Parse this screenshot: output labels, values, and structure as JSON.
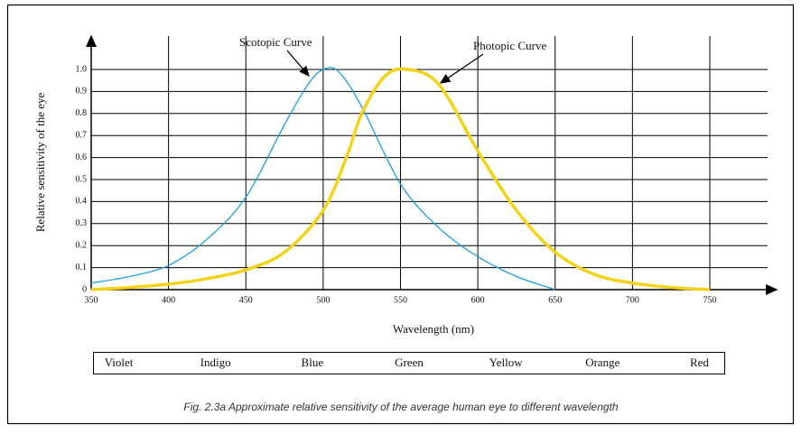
{
  "chart_data": {
    "type": "line",
    "xlabel": "Wavelength (nm)",
    "ylabel": "Relative sensitivity of the eye",
    "xlim": [
      350,
      750
    ],
    "xticks": [
      350,
      400,
      450,
      500,
      550,
      600,
      650,
      700,
      750
    ],
    "ylim": [
      0,
      1
    ],
    "yticks": [
      0,
      0.1,
      0.2,
      0.3,
      0.4,
      0.5,
      0.6,
      0.7,
      0.8,
      0.9,
      {
        "value": 1,
        "label": "1.0"
      }
    ],
    "grid": true,
    "series": [
      {
        "name": "Scotopic Curve",
        "color": "#1ea0dc",
        "width": 1.3,
        "x": [
          350,
          375,
          400,
          425,
          450,
          475,
          490,
          500,
          510,
          525,
          550,
          575,
          600,
          625,
          650
        ],
        "values": [
          0.03,
          0.06,
          0.11,
          0.23,
          0.42,
          0.75,
          0.93,
          1.0,
          0.99,
          0.83,
          0.48,
          0.28,
          0.15,
          0.06,
          0.0
        ]
      },
      {
        "name": "Photopic Curve",
        "color": "#f2d21a",
        "width": 3.5,
        "x": [
          350,
          375,
          400,
          425,
          450,
          475,
          500,
          515,
          525,
          540,
          555,
          575,
          600,
          625,
          650,
          675,
          700,
          725,
          750
        ],
        "values": [
          0.0,
          0.01,
          0.025,
          0.05,
          0.09,
          0.17,
          0.36,
          0.6,
          0.8,
          0.97,
          1.0,
          0.93,
          0.63,
          0.36,
          0.17,
          0.07,
          0.03,
          0.01,
          0.0
        ]
      }
    ],
    "spectrum_labels": [
      "Violet",
      "Indigo",
      "Blue",
      "Green",
      "Yellow",
      "Orange",
      "Red"
    ],
    "caption": "Fig. 2.3a Approximate relative sensitivity of the average human eye to different wavelength"
  }
}
